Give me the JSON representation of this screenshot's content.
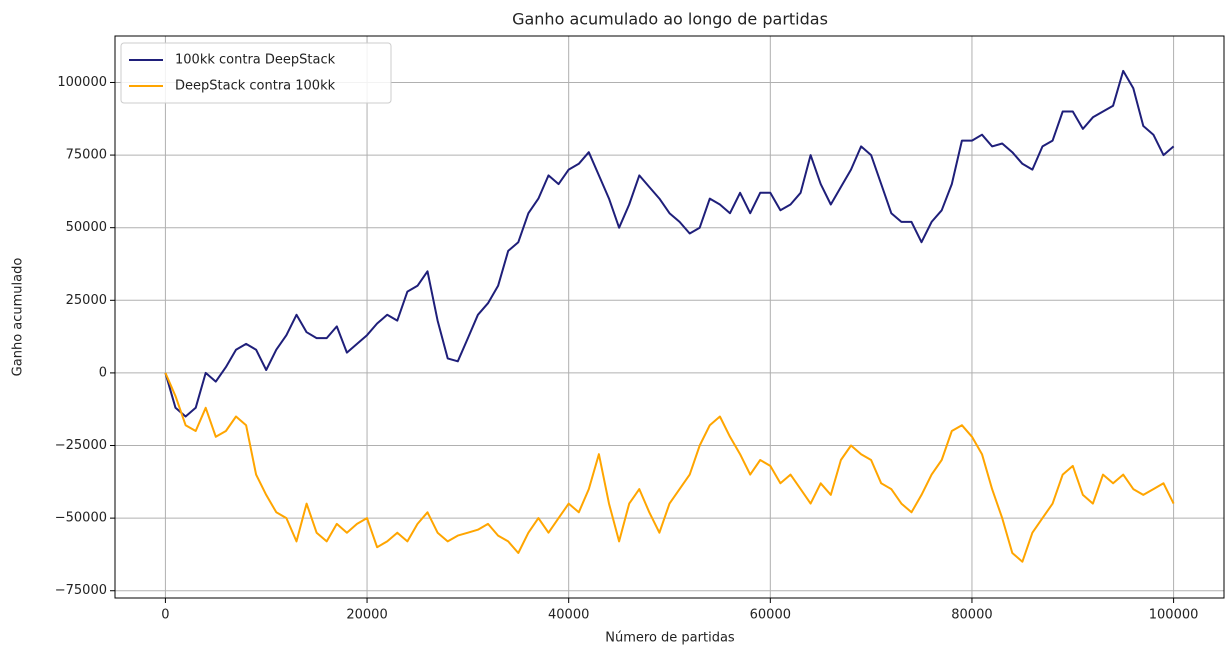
{
  "chart_data": {
    "type": "line",
    "title": "Ganho acumulado ao longo de partidas",
    "xlabel": "Número de partidas",
    "ylabel": "Ganho acumulado",
    "x": [
      0,
      1000,
      2000,
      3000,
      4000,
      5000,
      6000,
      7000,
      8000,
      9000,
      10000,
      11000,
      12000,
      13000,
      14000,
      15000,
      16000,
      17000,
      18000,
      19000,
      20000,
      21000,
      22000,
      23000,
      24000,
      25000,
      26000,
      27000,
      28000,
      29000,
      30000,
      31000,
      32000,
      33000,
      34000,
      35000,
      36000,
      37000,
      38000,
      39000,
      40000,
      41000,
      42000,
      43000,
      44000,
      45000,
      46000,
      47000,
      48000,
      49000,
      50000,
      51000,
      52000,
      53000,
      54000,
      55000,
      56000,
      57000,
      58000,
      59000,
      60000,
      61000,
      62000,
      63000,
      64000,
      65000,
      66000,
      67000,
      68000,
      69000,
      70000,
      71000,
      72000,
      73000,
      74000,
      75000,
      76000,
      77000,
      78000,
      79000,
      80000,
      81000,
      82000,
      83000,
      84000,
      85000,
      86000,
      87000,
      88000,
      89000,
      90000,
      91000,
      92000,
      93000,
      94000,
      95000,
      96000,
      97000,
      98000,
      99000,
      100000
    ],
    "series": [
      {
        "name": "100kk contra DeepStack",
        "color": "#1f1f7a",
        "values": [
          0,
          -12000,
          -15000,
          -12000,
          0,
          -3000,
          2000,
          8000,
          10000,
          8000,
          1000,
          8000,
          13000,
          20000,
          14000,
          12000,
          12000,
          16000,
          7000,
          10000,
          13000,
          17000,
          20000,
          18000,
          28000,
          30000,
          35000,
          18000,
          5000,
          4000,
          12000,
          20000,
          24000,
          30000,
          42000,
          45000,
          55000,
          60000,
          68000,
          65000,
          70000,
          72000,
          76000,
          68000,
          60000,
          50000,
          58000,
          68000,
          64000,
          60000,
          55000,
          52000,
          48000,
          50000,
          60000,
          58000,
          55000,
          62000,
          55000,
          62000,
          62000,
          56000,
          58000,
          62000,
          75000,
          65000,
          58000,
          64000,
          70000,
          78000,
          75000,
          65000,
          55000,
          52000,
          52000,
          45000,
          52000,
          56000,
          65000,
          80000,
          80000,
          82000,
          78000,
          79000,
          76000,
          72000,
          70000,
          78000,
          80000,
          90000,
          90000,
          84000,
          88000,
          90000,
          92000,
          104000,
          98000,
          85000,
          82000,
          75000,
          78000
        ]
      },
      {
        "name": "DeepStack contra 100kk",
        "color": "#ffa500",
        "values": [
          0,
          -8000,
          -18000,
          -20000,
          -12000,
          -22000,
          -20000,
          -15000,
          -18000,
          -35000,
          -42000,
          -48000,
          -50000,
          -58000,
          -45000,
          -55000,
          -58000,
          -52000,
          -55000,
          -52000,
          -50000,
          -60000,
          -58000,
          -55000,
          -58000,
          -52000,
          -48000,
          -55000,
          -58000,
          -56000,
          -55000,
          -54000,
          -52000,
          -56000,
          -58000,
          -62000,
          -55000,
          -50000,
          -55000,
          -50000,
          -45000,
          -48000,
          -40000,
          -28000,
          -45000,
          -58000,
          -45000,
          -40000,
          -48000,
          -55000,
          -45000,
          -40000,
          -35000,
          -25000,
          -18000,
          -15000,
          -22000,
          -28000,
          -35000,
          -30000,
          -32000,
          -38000,
          -35000,
          -40000,
          -45000,
          -38000,
          -42000,
          -30000,
          -25000,
          -28000,
          -30000,
          -38000,
          -40000,
          -45000,
          -48000,
          -42000,
          -35000,
          -30000,
          -20000,
          -18000,
          -22000,
          -28000,
          -40000,
          -50000,
          -62000,
          -65000,
          -55000,
          -50000,
          -45000,
          -35000,
          -32000,
          -42000,
          -45000,
          -35000,
          -38000,
          -35000,
          -40000,
          -42000,
          -40000,
          -38000,
          -45000
        ]
      }
    ],
    "xlim": [
      -5000,
      105000
    ],
    "ylim": [
      -77500,
      116000
    ],
    "xticks": [
      0,
      20000,
      40000,
      60000,
      80000,
      100000
    ],
    "yticks": [
      {
        "value": -75000,
        "label": "−75000"
      },
      {
        "value": -50000,
        "label": "−50000"
      },
      {
        "value": -25000,
        "label": "−25000"
      },
      0,
      25000,
      50000,
      75000,
      100000
    ],
    "grid": true,
    "legend": "upper left"
  }
}
